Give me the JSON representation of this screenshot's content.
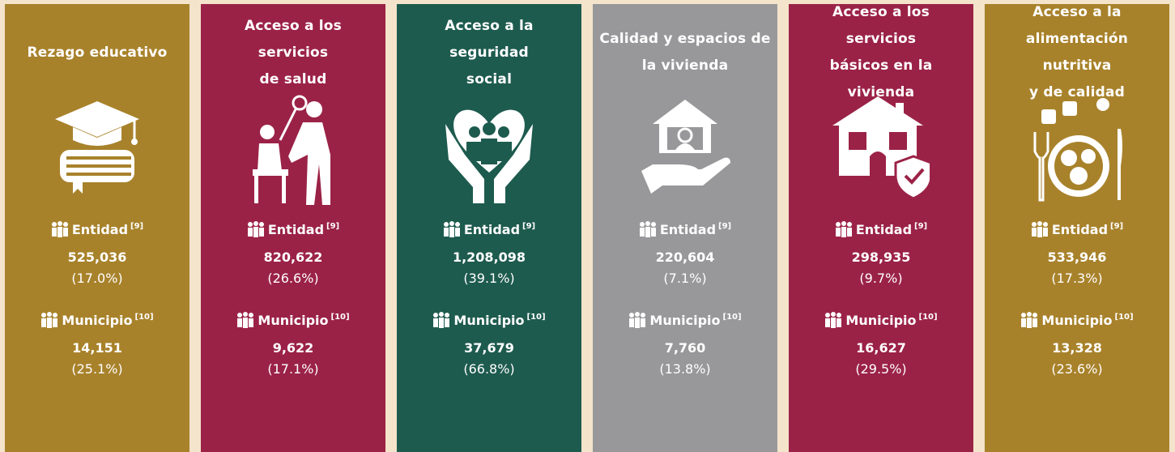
{
  "cards": [
    {
      "title": [
        "Rezago educativo"
      ],
      "entity": {
        "label": "Entidad",
        "ref": "[9]",
        "value": "525,036",
        "percent": "(17.0%)"
      },
      "municipality": {
        "label": "Municipio",
        "ref": "[10]",
        "value": "14,151",
        "percent": "(25.1%)"
      }
    },
    {
      "title": [
        "Acceso a los servicios",
        "de salud"
      ],
      "entity": {
        "label": "Entidad",
        "ref": "[9]",
        "value": "820,622",
        "percent": "(26.6%)"
      },
      "municipality": {
        "label": "Municipio",
        "ref": "[10]",
        "value": "9,622",
        "percent": "(17.1%)"
      }
    },
    {
      "title": [
        "Acceso a la seguridad",
        "social"
      ],
      "entity": {
        "label": "Entidad",
        "ref": "[9]",
        "value": "1,208,098",
        "percent": "(39.1%)"
      },
      "municipality": {
        "label": "Municipio",
        "ref": "[10]",
        "value": "37,679",
        "percent": "(66.8%)"
      }
    },
    {
      "title": [
        "Calidad y espacios de",
        "la vivienda"
      ],
      "entity": {
        "label": "Entidad",
        "ref": "[9]",
        "value": "220,604",
        "percent": "(7.1%)"
      },
      "municipality": {
        "label": "Municipio",
        "ref": "[10]",
        "value": "7,760",
        "percent": "(13.8%)"
      }
    },
    {
      "title": [
        "Acceso a los servicios",
        "básicos en la vivienda"
      ],
      "entity": {
        "label": "Entidad",
        "ref": "[9]",
        "value": "298,935",
        "percent": "(9.7%)"
      },
      "municipality": {
        "label": "Municipio",
        "ref": "[10]",
        "value": "16,627",
        "percent": "(29.5%)"
      }
    },
    {
      "title": [
        "Acceso a la",
        "alimentación nutritiva",
        "y de calidad"
      ],
      "entity": {
        "label": "Entidad",
        "ref": "[9]",
        "value": "533,946",
        "percent": "(17.3%)"
      },
      "municipality": {
        "label": "Municipio",
        "ref": "[10]",
        "value": "13,328",
        "percent": "(23.6%)"
      }
    }
  ]
}
